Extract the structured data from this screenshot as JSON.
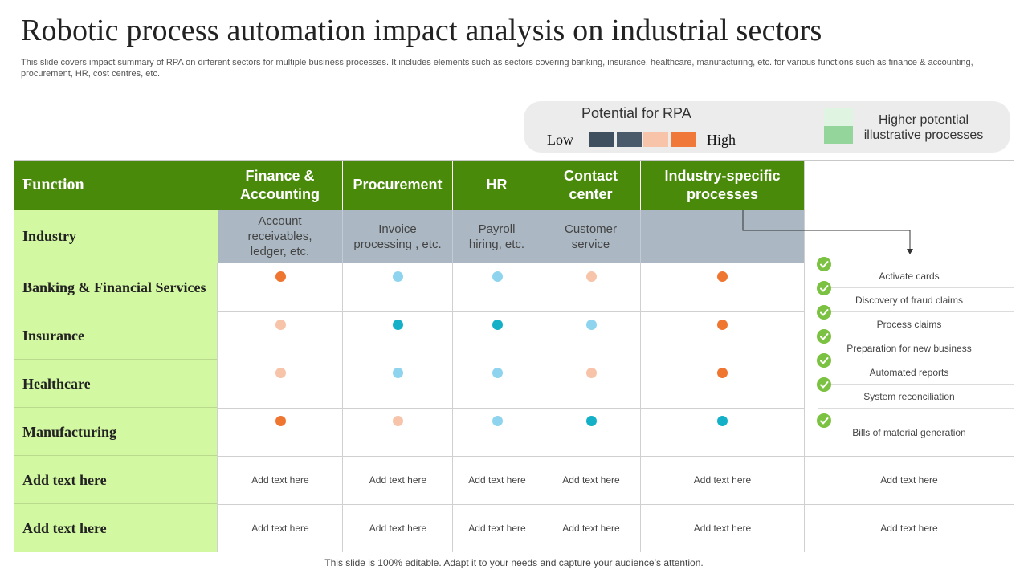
{
  "title": "Robotic process automation impact analysis on industrial sectors",
  "subtitle": "This slide covers impact summary of RPA on different sectors for multiple business processes. It includes elements such as sectors covering banking, insurance, healthcare, manufacturing, etc. for various functions such as finance & accounting, procurement, HR, cost centres, etc.",
  "legend": {
    "title": "Potential for RPA",
    "low": "Low",
    "high": "High",
    "scale_colors": [
      "#3f4f5f",
      "#4a5a6b",
      "#f7c4aa",
      "#f07838"
    ],
    "higher_potential": "Higher potential illustrative processes"
  },
  "table": {
    "function_label": "Function",
    "industry_label": "Industry",
    "columns": [
      "Finance & Accounting",
      "Procurement",
      "HR",
      "Contact center",
      "Industry-specific processes"
    ],
    "industry_examples": [
      "Account receivables, ledger, etc.",
      "Invoice processing , etc.",
      "Payroll hiring, etc.",
      "Customer service",
      ""
    ],
    "rows": [
      {
        "label": "Banking & Financial Services",
        "dots": [
          "#ef7631",
          "#8fd4ef",
          "#8fd4ef",
          "#f7c4aa",
          "#ef7631"
        ]
      },
      {
        "label": "Insurance",
        "dots": [
          "#f7c4aa",
          "#13b0c7",
          "#13b0c7",
          "#8fd4ef",
          "#ef7631"
        ]
      },
      {
        "label": "Healthcare",
        "dots": [
          "#f7c4aa",
          "#8fd4ef",
          "#8fd4ef",
          "#f7c4aa",
          "#ef7631"
        ]
      },
      {
        "label": "Manufacturing",
        "dots": [
          "#ef7631",
          "#f7c4aa",
          "#8fd4ef",
          "#13b0c7",
          "#13b0c7"
        ]
      }
    ],
    "text_rows": [
      {
        "label": "Add text here",
        "cells": [
          "Add text here",
          "Add text here",
          "Add text here",
          "Add text here",
          "Add text here",
          "Add text here"
        ]
      },
      {
        "label": "Add text here",
        "cells": [
          "Add text here",
          "Add text here",
          "Add text here",
          "Add text here",
          "Add text here",
          "Add text here"
        ]
      }
    ],
    "processes": [
      "Activate cards",
      "Discovery of fraud claims",
      "Process claims",
      "Preparation for new business",
      "Automated reports",
      "System reconciliation",
      "Bills of material generation"
    ]
  },
  "footer": "This slide is 100% editable. Adapt it to your needs and capture your audience’s attention."
}
